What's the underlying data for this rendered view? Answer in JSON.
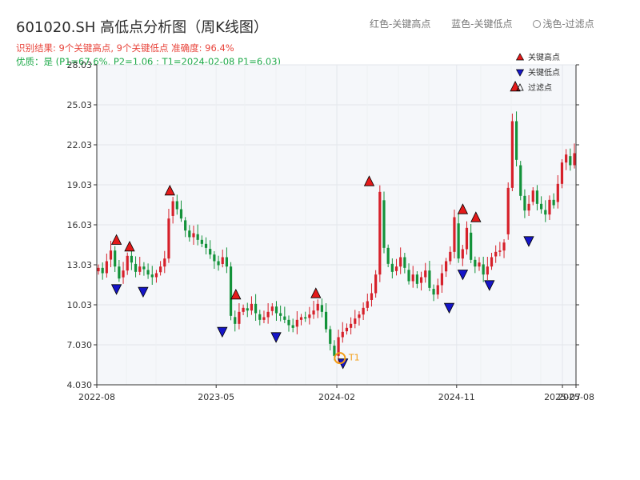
{
  "title": "601020.SH 高低点分析图（周K线图）",
  "header_legend": {
    "red": "红色-关键高点",
    "blue": "蓝色-关键低点",
    "light": "浅色-过滤点"
  },
  "info": {
    "result": "识别结果: 9个关键高点, 9个关键低点  准确度: 96.4%",
    "quality": "优质：是  (P1=67.6%, P2=1.06 ; T1=2024-02-08 P1=6.03)"
  },
  "colors": {
    "up": "#d6202a",
    "down": "#13923a",
    "high": "#e41a1a",
    "low": "#1515c8",
    "t1": "#f39c12",
    "plot_bg": "#f5f7fa"
  },
  "chart_data": {
    "type": "candlestick",
    "title": "601020.SH 高低点分析图（周K线图）",
    "ylim": [
      4.03,
      28.03
    ],
    "y_ticks": [
      "4.030",
      "7.030",
      "10.03",
      "13.03",
      "16.03",
      "19.03",
      "22.03",
      "25.03",
      "28.03"
    ],
    "x_ticks": [
      "2022-08",
      "2023-05",
      "2024-02",
      "2024-11",
      "2025-07",
      "2025-08"
    ],
    "grid": true,
    "legend": {
      "position": "top-right",
      "items": [
        {
          "label": "关键高点",
          "marker": "triangle-up",
          "color": "#e41a1a"
        },
        {
          "label": "关键低点",
          "marker": "triangle-down",
          "color": "#1515c8"
        },
        {
          "label": "过滤点",
          "marker": "triangle-up-hollow",
          "color": "#888888"
        }
      ]
    },
    "weekly_close": [
      12.8,
      12.4,
      13.3,
      14.1,
      12.9,
      12.0,
      12.6,
      13.7,
      13.2,
      12.5,
      12.9,
      12.7,
      12.3,
      12.1,
      12.4,
      12.9,
      13.5,
      16.5,
      17.8,
      17.2,
      16.5,
      15.6,
      15.1,
      15.4,
      14.9,
      14.6,
      14.3,
      13.8,
      13.3,
      13.0,
      13.6,
      12.9,
      9.2,
      8.6,
      9.5,
      9.8,
      9.6,
      10.1,
      9.4,
      8.9,
      9.1,
      9.5,
      9.9,
      9.4,
      9.2,
      8.9,
      8.5,
      8.3,
      8.9,
      9.1,
      9.0,
      9.3,
      9.6,
      10.1,
      9.5,
      8.2,
      7.1,
      6.2,
      7.6,
      8.0,
      8.3,
      8.6,
      9.0,
      9.3,
      9.8,
      10.3,
      10.9,
      12.3,
      18.5,
      14.3,
      13.1,
      12.5,
      12.9,
      13.6,
      12.8,
      11.8,
      12.3,
      11.6,
      12.1,
      12.6,
      11.3,
      10.8,
      11.5,
      12.4,
      13.3,
      14.0,
      16.6,
      13.5,
      14.2,
      15.8,
      13.4,
      12.9,
      13.2,
      12.3,
      12.9,
      13.6,
      14.0,
      14.1,
      14.7,
      18.8,
      23.8,
      20.9,
      18.2,
      17.1,
      17.6,
      18.6,
      17.6,
      17.2,
      16.8,
      17.9,
      17.5,
      19.1,
      20.7,
      21.3,
      20.5,
      21.4
    ],
    "key_highs": [
      {
        "date": "2022-09",
        "value": 14.5
      },
      {
        "date": "2022-10",
        "value": 14.0
      },
      {
        "date": "2023-01",
        "value": 18.2
      },
      {
        "date": "2023-06",
        "value": 10.4
      },
      {
        "date": "2023-12",
        "value": 10.5
      },
      {
        "date": "2024-04",
        "value": 18.9
      },
      {
        "date": "2024-11",
        "value": 16.8
      },
      {
        "date": "2024-12",
        "value": 16.2
      },
      {
        "date": "2025-03",
        "value": 26.0
      }
    ],
    "key_lows": [
      {
        "date": "2022-09",
        "value": 11.6
      },
      {
        "date": "2022-11",
        "value": 11.4
      },
      {
        "date": "2023-05",
        "value": 8.4
      },
      {
        "date": "2023-09",
        "value": 8.0
      },
      {
        "date": "2024-02",
        "value": 6.03
      },
      {
        "date": "2024-10",
        "value": 10.2
      },
      {
        "date": "2024-11",
        "value": 12.7
      },
      {
        "date": "2025-01",
        "value": 11.9
      },
      {
        "date": "2025-04",
        "value": 15.2
      }
    ],
    "annotation": {
      "label": "T1",
      "date": "2024-02-08",
      "value": 6.03
    }
  }
}
